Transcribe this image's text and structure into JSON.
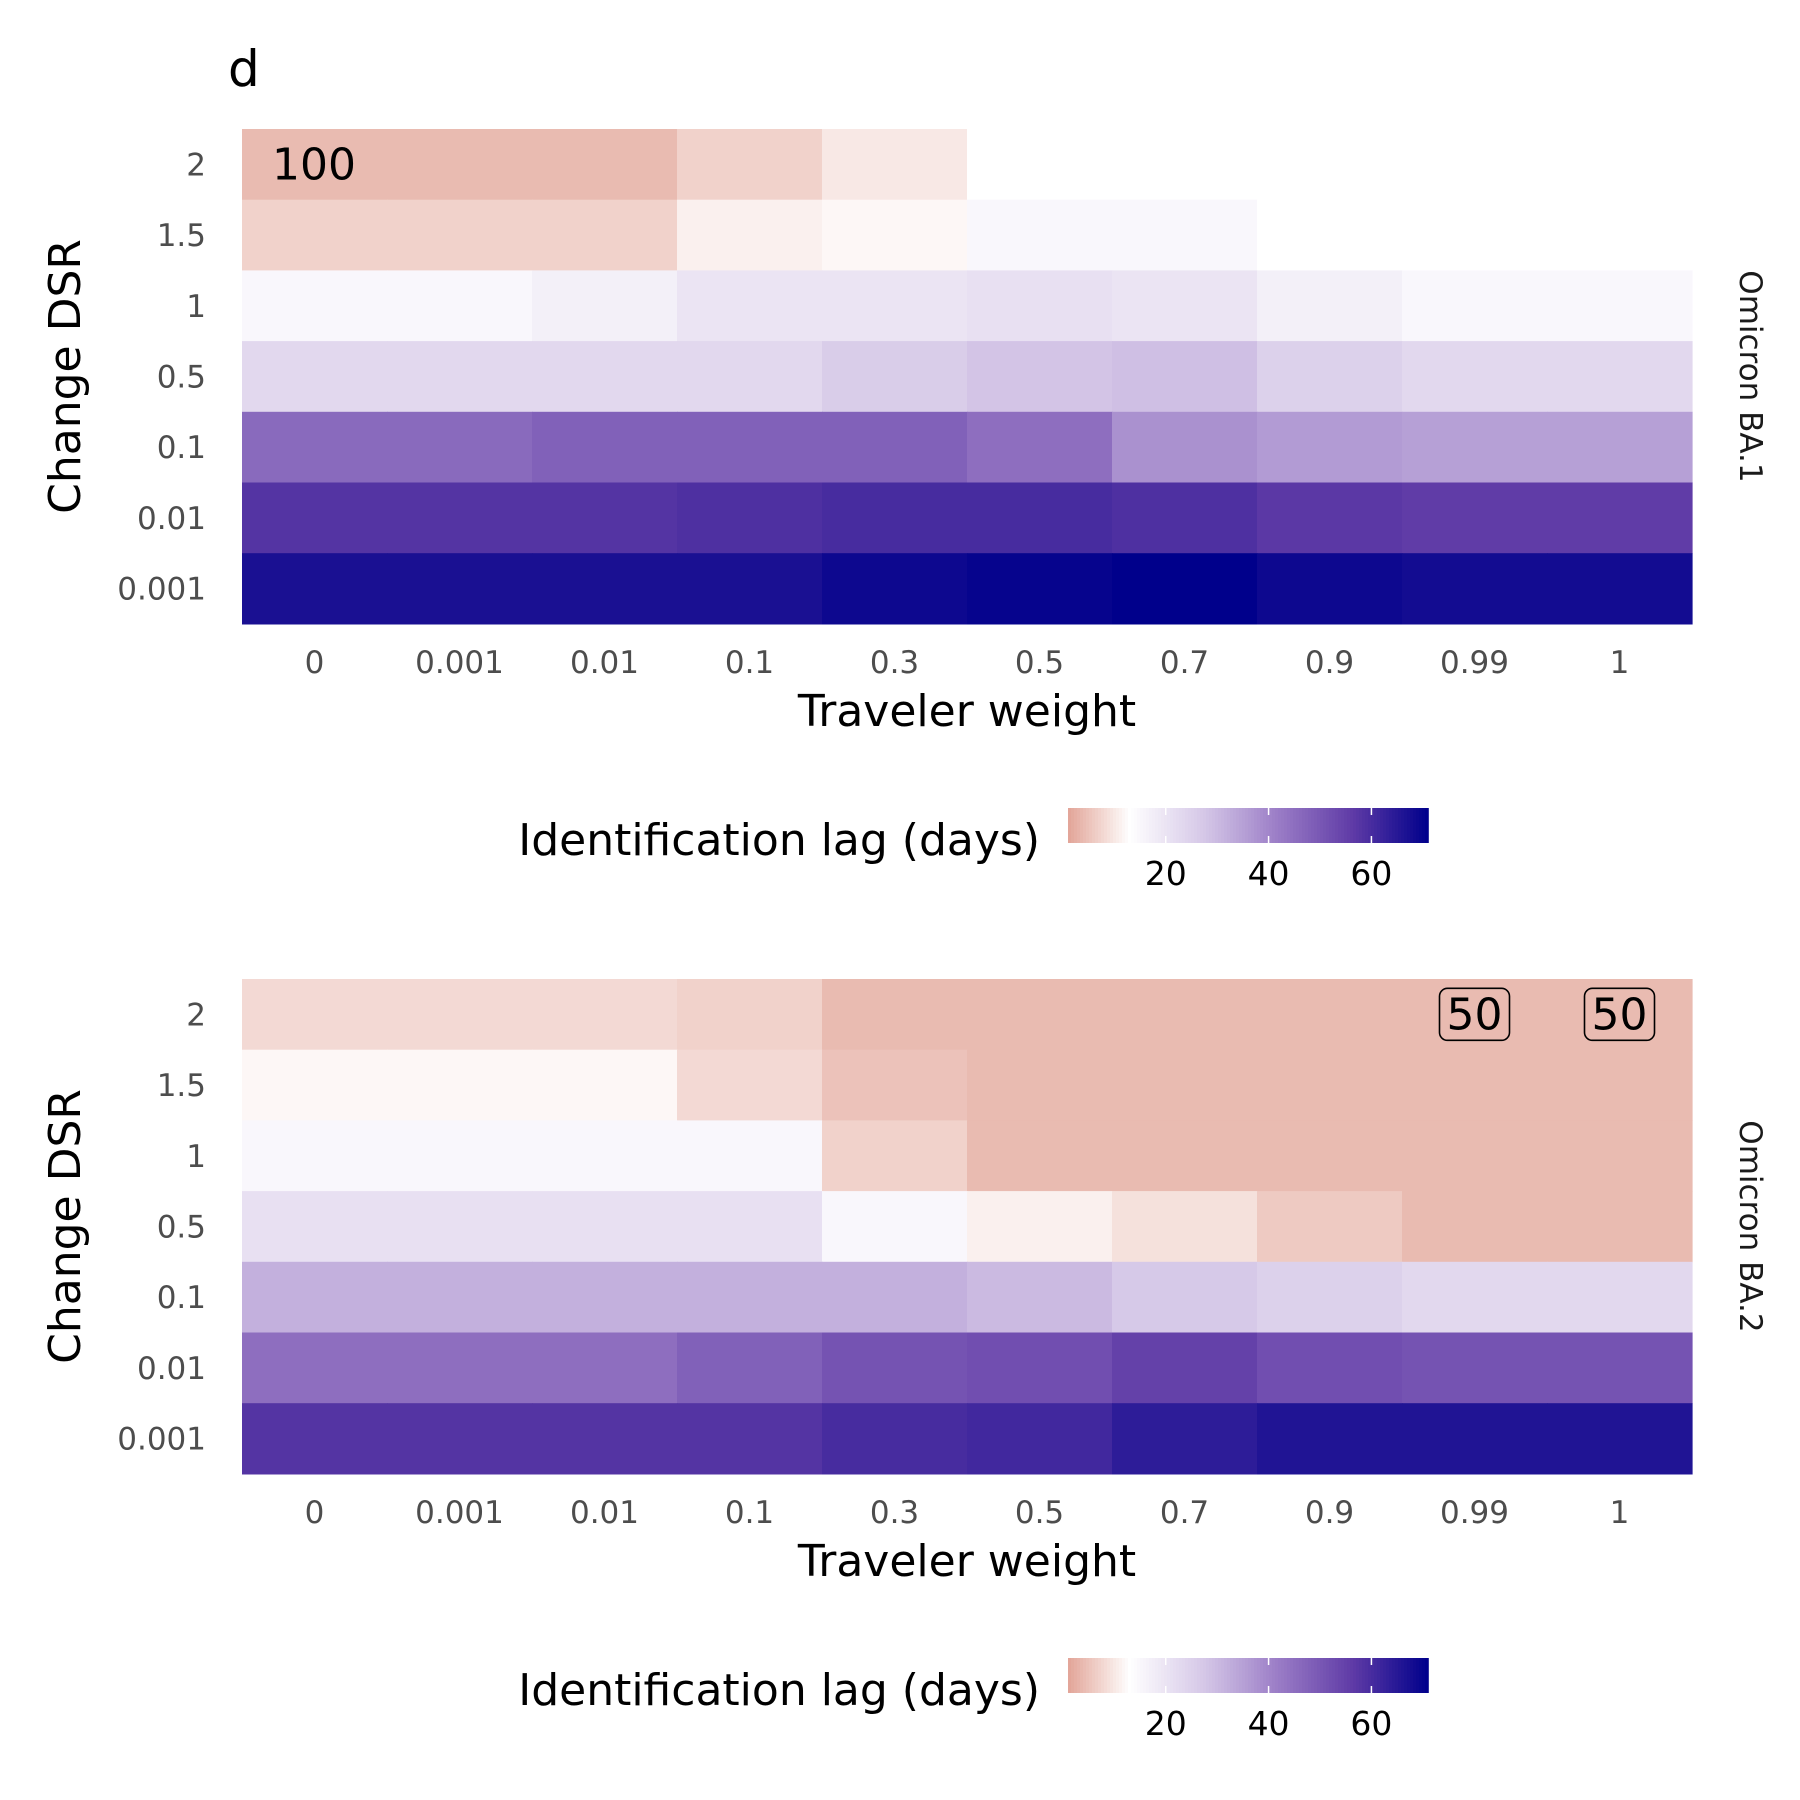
{
  "figure": {
    "panel_letter": "d"
  },
  "chart_data": [
    {
      "type": "heatmap",
      "facet": "Omicron BA.1",
      "xlabel": "Traveler weight",
      "ylabel": "Change DSR",
      "x_categories": [
        "0",
        "0.001",
        "0.01",
        "0.1",
        "0.3",
        "0.5",
        "0.7",
        "0.9",
        "0.99",
        "1"
      ],
      "y_categories": [
        "0.001",
        "0.01",
        "0.1",
        "0.5",
        "1",
        "1.5",
        "2"
      ],
      "values_by_row": {
        "2": [
          4,
          4,
          4,
          7,
          10,
          13,
          13,
          13,
          13,
          13
        ],
        "1.5": [
          7,
          7,
          7,
          11,
          12,
          15,
          15,
          13,
          13,
          13
        ],
        "1": [
          15,
          15,
          17,
          20,
          20,
          21,
          20,
          17,
          15,
          15
        ],
        "0.5": [
          23,
          23,
          23,
          23,
          26,
          28,
          29,
          25,
          23,
          23
        ],
        "0.1": [
          46,
          46,
          48,
          48,
          48,
          45,
          38,
          36,
          35,
          35
        ],
        "0.01": [
          58,
          58,
          58,
          59,
          60,
          60,
          59,
          57,
          56,
          56
        ],
        "0.001": [
          67,
          67,
          67,
          67,
          69,
          70,
          72,
          69,
          68,
          68
        ]
      },
      "annotations": [
        {
          "x": "0",
          "y": "2",
          "text": "100",
          "boxed": false
        }
      ],
      "legend": {
        "title": "Identification lag (days)",
        "ticks": [
          "20",
          "40",
          "60"
        ],
        "tick_values": [
          20,
          40,
          60
        ],
        "range": [
          1,
          71
        ]
      }
    },
    {
      "type": "heatmap",
      "facet": "Omicron BA.2",
      "xlabel": "Traveler weight",
      "ylabel": "Change DSR",
      "x_categories": [
        "0",
        "0.001",
        "0.01",
        "0.1",
        "0.3",
        "0.5",
        "0.7",
        "0.9",
        "0.99",
        "1"
      ],
      "y_categories": [
        "0.001",
        "0.01",
        "0.1",
        "0.5",
        "1",
        "1.5",
        "2"
      ],
      "values_by_row": {
        "2": [
          8,
          8,
          8,
          7,
          4,
          4,
          4,
          4,
          4,
          4
        ],
        "1.5": [
          12,
          12,
          12,
          8,
          5,
          4,
          4,
          4,
          4,
          4
        ],
        "1": [
          15,
          15,
          15,
          15,
          7,
          4,
          4,
          4,
          4,
          4
        ],
        "0.5": [
          21,
          21,
          21,
          21,
          15,
          11,
          9,
          6,
          4,
          4
        ],
        "0.1": [
          32,
          32,
          32,
          32,
          32,
          30,
          27,
          25,
          23,
          23
        ],
        "0.01": [
          45,
          45,
          45,
          48,
          51,
          52,
          55,
          52,
          51,
          51
        ],
        "0.001": [
          58,
          58,
          58,
          58,
          60,
          61,
          64,
          66,
          66,
          66
        ]
      },
      "annotations": [
        {
          "x": "0.99",
          "y": "2",
          "text": "50",
          "boxed": true
        },
        {
          "x": "1",
          "y": "2",
          "text": "50",
          "boxed": true
        }
      ],
      "legend": {
        "title": "Identification lag (days)",
        "ticks": [
          "20",
          "40",
          "60"
        ],
        "tick_values": [
          20,
          40,
          60
        ],
        "range": [
          1,
          71
        ]
      }
    }
  ],
  "colors": {
    "low": "#e2a497",
    "mid": "#ffffff",
    "mid_value": 13,
    "p1": "#d5c7e7",
    "p2": "#9a7cc6",
    "p3": "#5e3aa6",
    "high": "#00008b"
  }
}
